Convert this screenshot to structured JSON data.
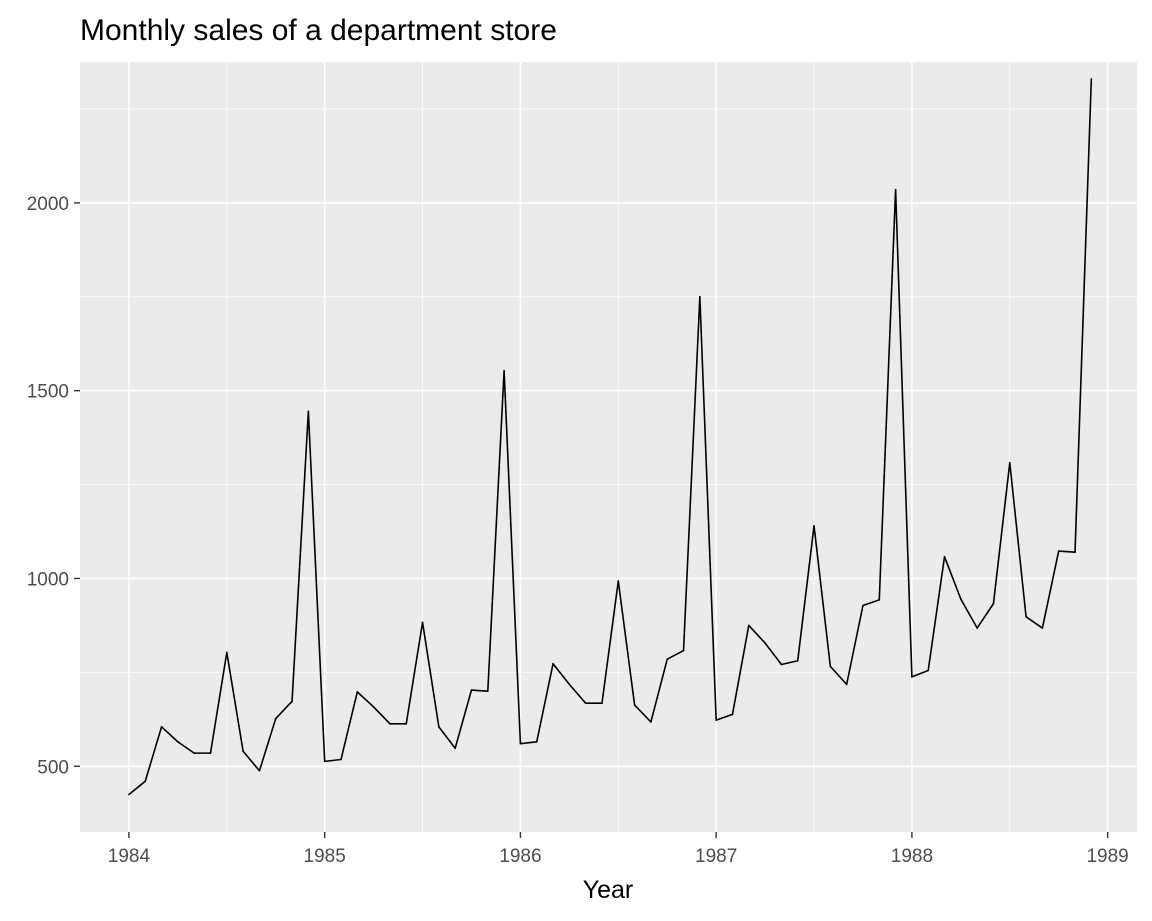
{
  "chart_data": {
    "type": "line",
    "title": "Monthly sales of a department store",
    "xlabel": "Year",
    "ylabel": "",
    "x_ticks": [
      "1984",
      "1985",
      "1986",
      "1987",
      "1988",
      "1989"
    ],
    "y_ticks": [
      "500",
      "1000",
      "1500",
      "2000"
    ],
    "xlim": [
      1983.75,
      1989.15
    ],
    "ylim": [
      325,
      2375
    ],
    "grid": true,
    "legend": "none",
    "colors": {
      "panel": "#ebebeb",
      "grid": "#ffffff",
      "line": "#000000",
      "tick": "#333333"
    },
    "series": [
      {
        "x": [
          "1984-01",
          "1984-02",
          "1984-03",
          "1984-04",
          "1984-05",
          "1984-06",
          "1984-07",
          "1984-08",
          "1984-09",
          "1984-10",
          "1984-11",
          "1984-12",
          "1985-01",
          "1985-02",
          "1985-03",
          "1985-04",
          "1985-05",
          "1985-06",
          "1985-07",
          "1985-08",
          "1985-09",
          "1985-10",
          "1985-11",
          "1985-12",
          "1986-01",
          "1986-02",
          "1986-03",
          "1986-04",
          "1986-05",
          "1986-06",
          "1986-07",
          "1986-08",
          "1986-09",
          "1986-10",
          "1986-11",
          "1986-12",
          "1987-01",
          "1987-02",
          "1987-03",
          "1987-04",
          "1987-05",
          "1987-06",
          "1987-07",
          "1987-08",
          "1987-09",
          "1987-10",
          "1987-11",
          "1987-12",
          "1988-01",
          "1988-02",
          "1988-03",
          "1988-04",
          "1988-05",
          "1988-06",
          "1988-07",
          "1988-08",
          "1988-09",
          "1988-10",
          "1988-11",
          "1988-12"
        ],
        "values": [
          425,
          460,
          605,
          565,
          535,
          535,
          803,
          540,
          488,
          627,
          673,
          1445,
          513,
          518,
          698,
          658,
          613,
          613,
          883,
          605,
          548,
          703,
          700,
          1553,
          560,
          565,
          773,
          718,
          668,
          668,
          993,
          663,
          618,
          785,
          808,
          1750,
          623,
          638,
          875,
          828,
          771,
          781,
          1140,
          766,
          718,
          928,
          943,
          2035,
          738,
          755,
          1058,
          945,
          868,
          933,
          1308,
          898,
          868,
          1073,
          1070,
          2330
        ]
      }
    ]
  }
}
